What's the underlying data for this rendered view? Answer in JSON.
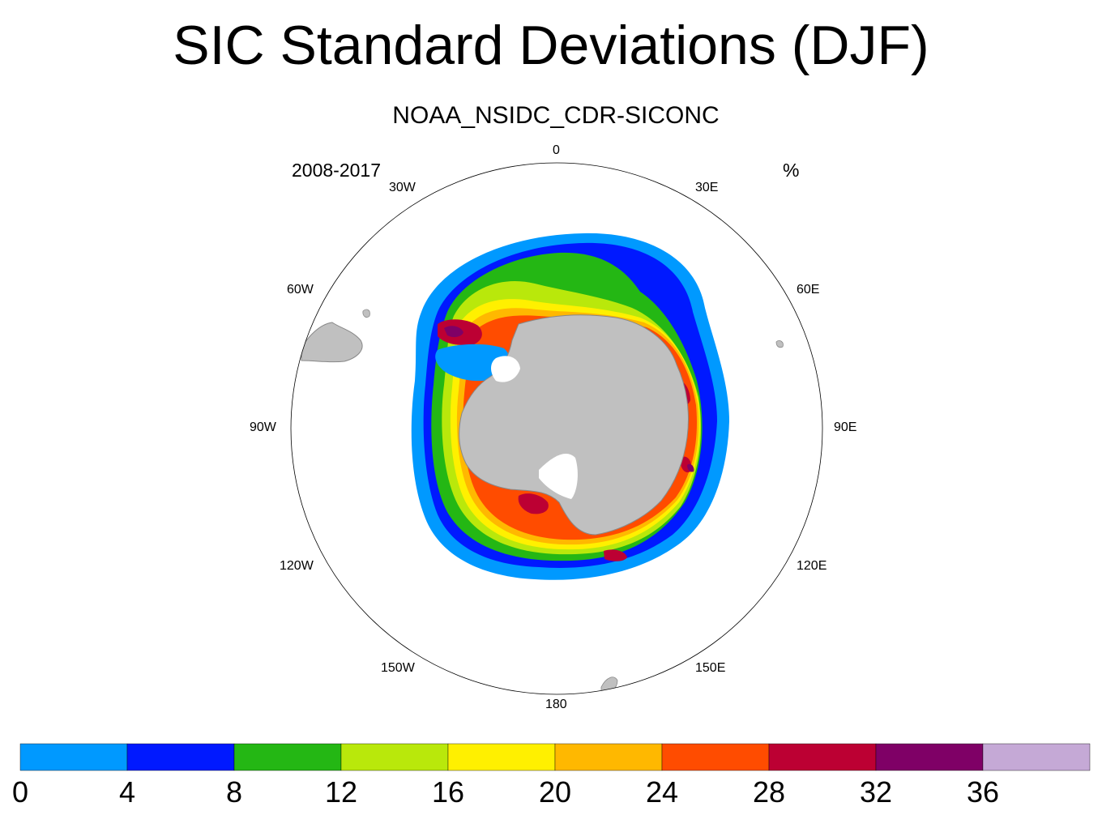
{
  "title": "SIC Standard Deviations (DJF)",
  "subtitle": "NOAA_NSIDC_CDR-SICONC",
  "left_string": "2008-2017",
  "right_string": "%",
  "map": {
    "projection": "south polar stereographic",
    "land_color": "#c0c0c0",
    "background_color": "#ffffff",
    "longitude_labels": {
      "lon_0": "0",
      "lon_30e": "30E",
      "lon_60e": "60E",
      "lon_90e": "90E",
      "lon_120e": "120E",
      "lon_150e": "150E",
      "lon_180": "180",
      "lon_150w": "150W",
      "lon_120w": "120W",
      "lon_90w": "90W",
      "lon_60w": "60W",
      "lon_30w": "30W"
    }
  },
  "colorbar": {
    "colors": [
      "#0099ff",
      "#0019ff",
      "#24b714",
      "#b9e80b",
      "#fff000",
      "#ffb800",
      "#ff4c00",
      "#bc0033",
      "#7f0066",
      "#c5a9d6"
    ],
    "labels": [
      "0",
      "4",
      "8",
      "12",
      "16",
      "20",
      "24",
      "28",
      "32",
      "36"
    ]
  }
}
